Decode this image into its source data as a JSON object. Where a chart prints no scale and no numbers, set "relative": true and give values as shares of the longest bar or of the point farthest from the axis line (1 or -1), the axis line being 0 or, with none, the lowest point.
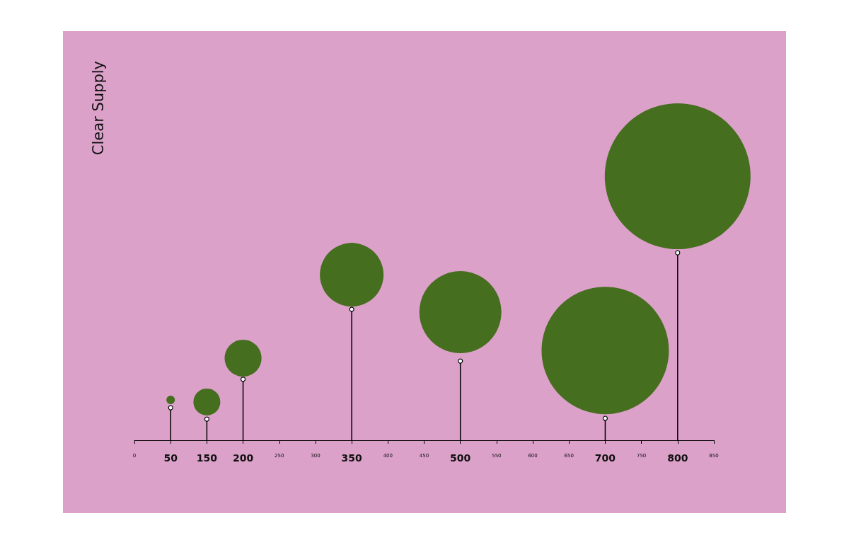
{
  "chart_data": {
    "type": "bubble",
    "ylabel": "Clear Supply",
    "relative": true,
    "grid": false,
    "categories": [
      "0",
      "50",
      "150",
      "200",
      "250",
      "300",
      "350",
      "400",
      "450",
      "500",
      "550",
      "600",
      "650",
      "700",
      "750",
      "800",
      "850"
    ],
    "series": [
      {
        "color": "#466e1f",
        "values": [
          null,
          0.153,
          0.145,
          0.311,
          null,
          null,
          0.627,
          null,
          null,
          0.485,
          null,
          null,
          null,
          0.34,
          null,
          1,
          null
        ],
        "sizes": [
          null,
          0.0034,
          0.034,
          0.064,
          null,
          null,
          0.191,
          null,
          null,
          0.317,
          null,
          null,
          null,
          0.763,
          null,
          1,
          null
        ]
      },
      {
        "type": "lollipop",
        "color": "#000000",
        "values": [
          null,
          0.123,
          0.08,
          0.231,
          null,
          null,
          0.496,
          null,
          null,
          0.3,
          null,
          null,
          null,
          0.083,
          null,
          0.71,
          null
        ]
      }
    ]
  }
}
